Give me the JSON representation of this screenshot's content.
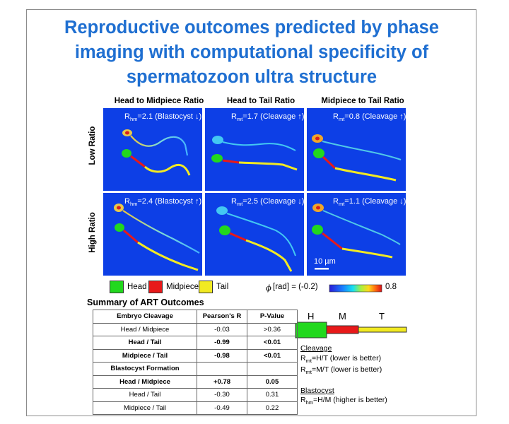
{
  "title": "Reproductive outcomes predicted by phase imaging with computational specificity of spermatozoon ultra structure",
  "columns": [
    "Head to Midpiece Ratio",
    "Head to Tail Ratio",
    "Midpiece to Tail Ratio"
  ],
  "rows": [
    "Low Ratio",
    "High Ratio"
  ],
  "panels": [
    {
      "sub": "hm",
      "text": "=2.1 (Blastocyst ↓)"
    },
    {
      "sub": "mt",
      "text": "=1.7 (Cleavage ↑)"
    },
    {
      "sub": "mt",
      "text": "=0.8 (Cleavage ↑)"
    },
    {
      "sub": "hm",
      "text": "=2.4 (Blastocyst ↑)"
    },
    {
      "sub": "mt",
      "text": "=2.5 (Cleavage ↓)"
    },
    {
      "sub": "mt",
      "text": "=1.1 (Cleavage ↓)"
    }
  ],
  "scale_bar": "10 µm",
  "legend": {
    "head": "Head",
    "midpiece": "Midpiece",
    "tail": "Tail",
    "head_color": "#22d81e",
    "midpiece_color": "#e8191a",
    "tail_color": "#f2ea22"
  },
  "colorbar": {
    "symbol": "ϕ",
    "label": "[rad] = (-0.2)",
    "max": "0.8"
  },
  "art": {
    "title": "Summary of ART Outcomes",
    "headers": [
      "Embryo Cleavage",
      "Pearson's R",
      "P-Value"
    ],
    "rows": [
      [
        "Head / Midpiece",
        "-0.03",
        ">0.36"
      ],
      [
        "Head / Tail",
        "-0.99",
        "<0.01"
      ],
      [
        "Midpiece / Tail",
        "-0.98",
        "<0.01"
      ],
      [
        "Blastocyst Formation",
        "",
        ""
      ],
      [
        "Head / Midpiece",
        "+0.78",
        "0.05"
      ],
      [
        "Head / Tail",
        "-0.30",
        "0.31"
      ],
      [
        "Midpiece / Tail",
        "-0.49",
        "0.22"
      ]
    ]
  },
  "schematic": {
    "h": "H",
    "m": "M",
    "t": "T"
  },
  "notes": {
    "cleavage_head": "Cleavage",
    "cleavage_1_sub": "mt",
    "cleavage_1": "=H/T (lower is better)",
    "cleavage_2_sub": "mt",
    "cleavage_2": "=M/T (lower is better)",
    "blast_head": "Blastocyst",
    "blast_1_sub": "hm",
    "blast_1": "=H/M (higher is better)"
  }
}
